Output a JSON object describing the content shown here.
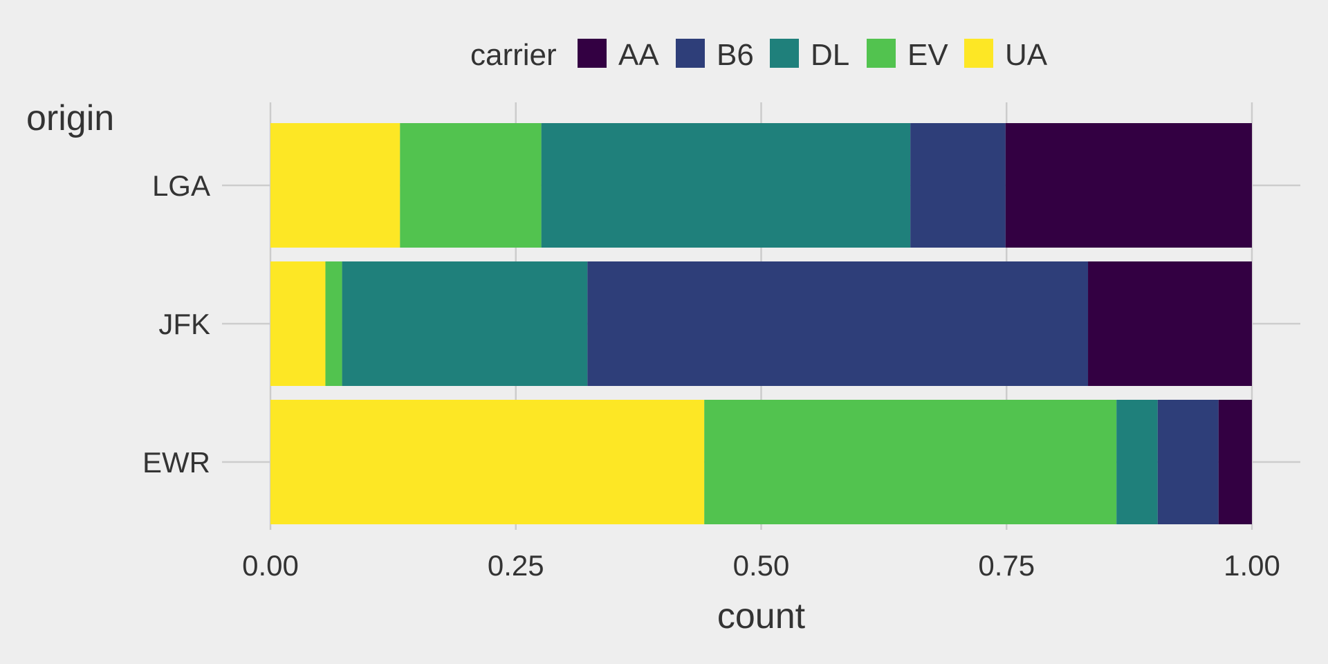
{
  "chart_data": {
    "type": "bar",
    "orientation": "horizontal",
    "stacked": true,
    "normalized": true,
    "title": "",
    "xlabel": "count",
    "ylabel": "origin",
    "xlim": [
      0,
      1
    ],
    "x_ticks": [
      0,
      0.25,
      0.5,
      0.75,
      1
    ],
    "x_tick_labels": [
      "0.00",
      "0.25",
      "0.50",
      "0.75",
      "1.00"
    ],
    "categories": [
      "LGA",
      "JFK",
      "EWR"
    ],
    "legend": {
      "title": "carrier",
      "position": "top",
      "entries": [
        "AA",
        "B6",
        "DL",
        "EV",
        "UA"
      ]
    },
    "series": [
      {
        "name": "UA",
        "color": "#FDE725",
        "values": [
          0.132,
          0.056,
          0.442
        ]
      },
      {
        "name": "EV",
        "color": "#52C34F",
        "values": [
          0.144,
          0.017,
          0.42
        ]
      },
      {
        "name": "DL",
        "color": "#1F807B",
        "values": [
          0.376,
          0.25,
          0.042
        ]
      },
      {
        "name": "B6",
        "color": "#2E3E79",
        "values": [
          0.097,
          0.51,
          0.062
        ]
      },
      {
        "name": "AA",
        "color": "#330042",
        "values": [
          0.251,
          0.167,
          0.034
        ]
      }
    ],
    "grid": true,
    "background": "#EEEEEE"
  }
}
